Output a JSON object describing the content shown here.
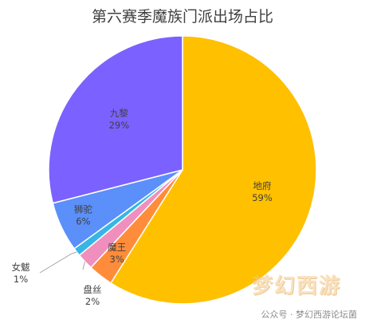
{
  "chart_data": {
    "type": "pie",
    "title": "第六赛季魔族门派出场占比",
    "slices": [
      {
        "name": "地府",
        "value": 59,
        "label": "59%",
        "color": "#FFC000"
      },
      {
        "name": "魔王",
        "value": 3,
        "label": "3%",
        "color": "#FF8C3A"
      },
      {
        "name": "盘丝",
        "value": 2,
        "label": "2%",
        "color": "#F08FBE"
      },
      {
        "name": "女魃",
        "value": 1,
        "label": "1%",
        "color": "#36B5E6"
      },
      {
        "name": "狮驼",
        "value": 6,
        "label": "6%",
        "color": "#5B8FF9"
      },
      {
        "name": "九黎",
        "value": 29,
        "label": "29%",
        "color": "#7B61FF"
      }
    ],
    "legend": "none"
  },
  "watermark": {
    "text": "公众号 · 梦幻西游论坛菌",
    "logo_text": "梦幻西游"
  }
}
